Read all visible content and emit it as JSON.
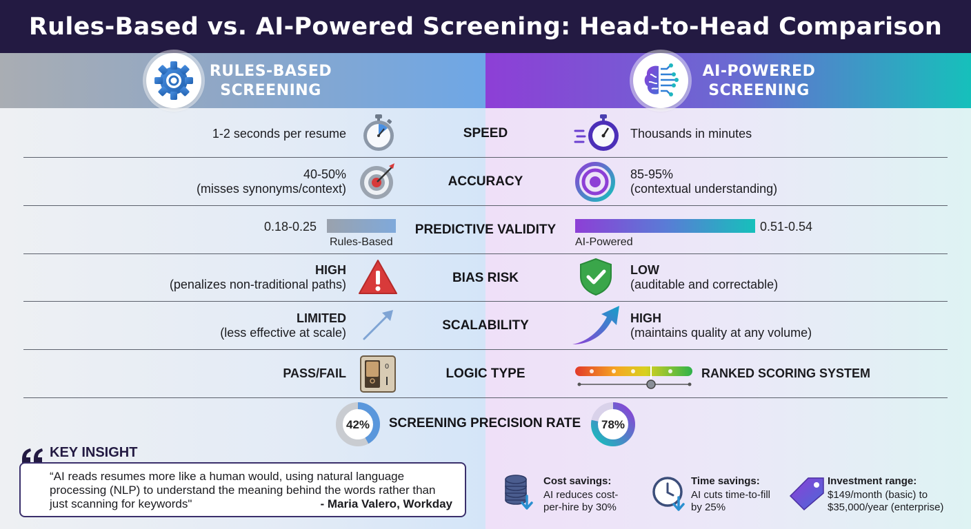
{
  "title": "Rules-Based vs. AI-Powered Screening: Head-to-Head Comparison",
  "columns": {
    "left": {
      "line1": "RULES-BASED",
      "line2": "SCREENING",
      "icon": "gear-icon"
    },
    "right": {
      "line1": "AI-POWERED",
      "line2": "SCREENING",
      "icon": "brain-circuit-icon"
    }
  },
  "rows": {
    "speed": {
      "label": "SPEED",
      "left": "1-2 seconds per resume",
      "right": "Thousands in minutes"
    },
    "accuracy": {
      "label": "ACCURACY",
      "left_line1": "40-50%",
      "left_line2": "(misses synonyms/context)",
      "right_line1": "85-95%",
      "right_line2": "(contextual understanding)"
    },
    "validity": {
      "label": "PREDICTIVE VALIDITY",
      "left_value": "0.18-0.25",
      "left_bar_label": "Rules-Based",
      "right_value": "0.51-0.54",
      "right_bar_label": "AI-Powered"
    },
    "bias": {
      "label": "BIAS RISK",
      "left_line1": "HIGH",
      "left_line2": "(penalizes non-traditional paths)",
      "right_line1": "LOW",
      "right_line2": "(auditable and correctable)"
    },
    "scalability": {
      "label": "SCALABILITY",
      "left_line1": "LIMITED",
      "left_line2": "(less effective at scale)",
      "right_line1": "HIGH",
      "right_line2": "(maintains quality at any volume)"
    },
    "logic": {
      "label": "LOGIC TYPE",
      "left": "PASS/FAIL",
      "right": "RANKED SCORING SYSTEM"
    }
  },
  "precision": {
    "label": "SCREENING PRECISION RATE",
    "left_value": "42%",
    "left_fraction": 0.42,
    "right_value": "78%",
    "right_fraction": 0.78
  },
  "insight": {
    "heading": "KEY INSIGHT",
    "quote": "“AI reads resumes more like a human would, using natural language processing (NLP) to understand the meaning behind the words rather than just scanning for keywords\"",
    "author": "- Maria Valero, Workday"
  },
  "stats": {
    "cost": {
      "title": "Cost savings:",
      "line1": "AI reduces cost-",
      "line2": "per-hire by 30%"
    },
    "time": {
      "title": "Time savings:",
      "line1": "AI cuts time-to-fill",
      "line2": "by 25%"
    },
    "investment": {
      "title": "Investment range:",
      "line1": "$149/month (basic) to",
      "line2": "$35,000/year (enterprise)"
    }
  },
  "colors": {
    "title_bg": "#231a42",
    "purple": "#8d3fd6",
    "teal": "#16c0bb",
    "blue": "#6ea7e6",
    "red": "#d83a3a",
    "green": "#3aa64a"
  }
}
